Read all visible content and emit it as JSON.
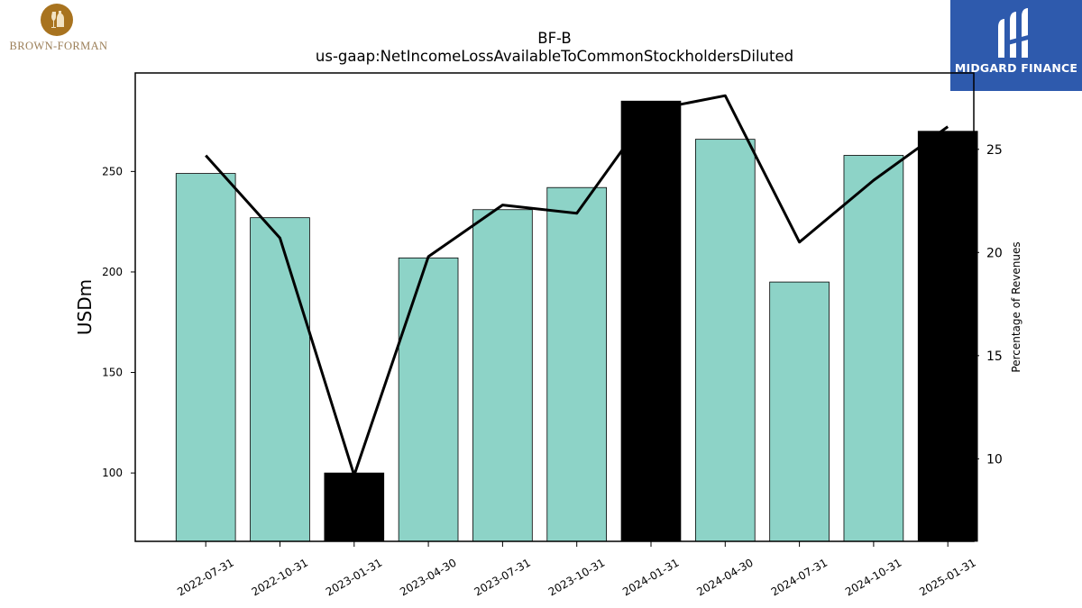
{
  "logos": {
    "company": {
      "name": "BROWN-FORMAN",
      "icon": "decanter-glass-seal",
      "color": "#a8731f"
    },
    "brand": {
      "name": "MIDGARD FINANCE",
      "icon": "midgard-m-mark",
      "color": "#2e5aad"
    }
  },
  "chart_data": {
    "type": "bar",
    "title": "BF-B",
    "subtitle": "us-gaap:NetIncomeLossAvailableToCommonStockholdersDiluted",
    "categories": [
      "2022-07-31",
      "2022-10-31",
      "2023-01-31",
      "2023-04-30",
      "2023-07-31",
      "2023-10-31",
      "2024-01-31",
      "2024-04-30",
      "2024-07-31",
      "2024-10-31",
      "2025-01-31"
    ],
    "series": [
      {
        "axis": "left",
        "type": "bar",
        "values": [
          249,
          227,
          100,
          207,
          231,
          242,
          285,
          266,
          195,
          258,
          270
        ],
        "highlighted": [
          false,
          false,
          true,
          false,
          false,
          false,
          true,
          false,
          false,
          false,
          true
        ],
        "color": "#8dd3c7",
        "highlight_color": "#000000"
      },
      {
        "axis": "right",
        "type": "line",
        "values": [
          24.7,
          20.7,
          9.2,
          19.8,
          22.3,
          21.9,
          26.9,
          27.6,
          20.5,
          23.5,
          26.1
        ],
        "color": "#000000"
      }
    ],
    "ylabel": "USDm",
    "ylabel_right": "Percentage of Revenues",
    "ylim": [
      66,
      299
    ],
    "ylim_right": [
      6,
      28.7
    ],
    "yticks": [
      100,
      150,
      200,
      250
    ],
    "yticks_right": [
      10,
      15,
      20,
      25
    ],
    "xtick_rotation": 30,
    "grid": false,
    "legend": "none"
  }
}
